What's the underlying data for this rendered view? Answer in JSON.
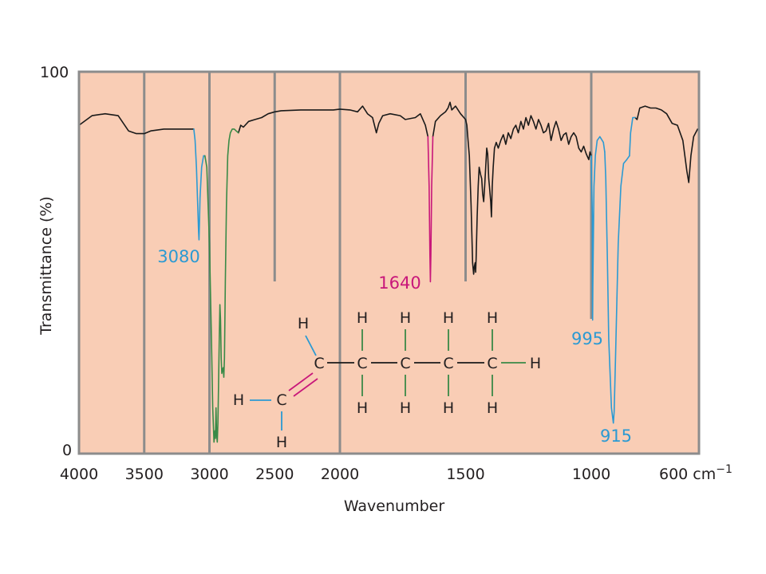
{
  "colors": {
    "plot_background": "#f9cdb5",
    "frame": "#8c8c8c",
    "gridline": "#8c8c8c",
    "spectrum": "#1a1a1a",
    "text": "#231f20",
    "blue": "#2b9ad3",
    "green": "#3a8a47",
    "magenta": "#c8177a"
  },
  "chart_data": {
    "type": "line",
    "title": "",
    "xlabel": "Wavenumber",
    "ylabel": "Transmittance (%)",
    "xlim": [
      4000,
      600
    ],
    "ylim": [
      0,
      100
    ],
    "x_scale": "piecewise-linear (expanded 2x below 2000 cm-1)",
    "grid": true,
    "x_ticks": [
      {
        "value": 4000,
        "label": "4000"
      },
      {
        "value": 3500,
        "label": "3500"
      },
      {
        "value": 3000,
        "label": "3000"
      },
      {
        "value": 2500,
        "label": "2500"
      },
      {
        "value": 2000,
        "label": "2000"
      },
      {
        "value": 1500,
        "label": "1500"
      },
      {
        "value": 1000,
        "label": "1000"
      },
      {
        "value": 600,
        "label": "600 cm",
        "superscript": "−1"
      }
    ],
    "y_ticks": [
      {
        "value": 100,
        "label": "100"
      },
      {
        "value": 0,
        "label": "0"
      }
    ],
    "series": [
      {
        "color": "black",
        "segments": [
          [
            [
              4000,
              86
            ],
            [
              3900,
              88.5
            ],
            [
              3800,
              89
            ],
            [
              3700,
              88.5
            ],
            [
              3620,
              84.5
            ],
            [
              3560,
              83.8
            ],
            [
              3500,
              83.8
            ],
            [
              3450,
              84.5
            ],
            [
              3350,
              85
            ],
            [
              3240,
              85
            ],
            [
              3120,
              85
            ]
          ],
          [
            [
              2778,
              84
            ],
            [
              2760,
              86
            ],
            [
              2740,
              85.5
            ],
            [
              2700,
              87
            ],
            [
              2650,
              87.5
            ],
            [
              2600,
              88
            ],
            [
              2550,
              89
            ],
            [
              2500,
              89.5
            ],
            [
              2450,
              89.8
            ],
            [
              2300,
              90
            ],
            [
              2200,
              90
            ],
            [
              2100,
              90
            ],
            [
              2050,
              90
            ],
            [
              2000,
              90.2
            ],
            [
              1960,
              90
            ],
            [
              1930,
              89.5
            ],
            [
              1910,
              91
            ],
            [
              1890,
              89
            ],
            [
              1870,
              88
            ],
            [
              1855,
              84
            ],
            [
              1845,
              86.5
            ],
            [
              1830,
              88.5
            ],
            [
              1800,
              89
            ],
            [
              1760,
              88.5
            ],
            [
              1740,
              87.5
            ],
            [
              1700,
              88
            ],
            [
              1680,
              89
            ],
            [
              1660,
              86
            ],
            [
              1650,
              83
            ]
          ],
          [
            [
              1630,
              83
            ],
            [
              1620,
              87
            ],
            [
              1600,
              88.5
            ],
            [
              1580,
              89.5
            ],
            [
              1570,
              90.5
            ],
            [
              1562,
              92
            ],
            [
              1555,
              90
            ],
            [
              1540,
              91
            ],
            [
              1520,
              89
            ],
            [
              1500,
              87.5
            ],
            [
              1495,
              86
            ],
            [
              1490,
              82
            ],
            [
              1485,
              78
            ],
            [
              1478,
              65
            ],
            [
              1472,
              50
            ],
            [
              1468,
              47
            ],
            [
              1465,
              49
            ],
            [
              1462,
              50
            ],
            [
              1460,
              47.5
            ],
            [
              1458,
              51
            ],
            [
              1454,
              62
            ],
            [
              1450,
              70
            ],
            [
              1446,
              75
            ],
            [
              1440,
              73
            ],
            [
              1436,
              72
            ],
            [
              1432,
              68
            ],
            [
              1428,
              66
            ],
            [
              1424,
              70
            ],
            [
              1420,
              75
            ],
            [
              1416,
              80
            ],
            [
              1412,
              78.5
            ],
            [
              1408,
              72
            ],
            [
              1405,
              70
            ],
            [
              1400,
              66
            ],
            [
              1397,
              62
            ],
            [
              1394,
              70
            ],
            [
              1390,
              75
            ],
            [
              1385,
              80
            ],
            [
              1378,
              81.5
            ],
            [
              1370,
              80
            ],
            [
              1360,
              82
            ],
            [
              1350,
              83.5
            ],
            [
              1340,
              81
            ],
            [
              1330,
              84
            ],
            [
              1320,
              82.5
            ],
            [
              1310,
              85
            ],
            [
              1300,
              86
            ],
            [
              1290,
              84
            ],
            [
              1280,
              87
            ],
            [
              1270,
              85
            ],
            [
              1260,
              88
            ],
            [
              1250,
              86
            ],
            [
              1240,
              88.5
            ],
            [
              1230,
              87
            ],
            [
              1220,
              85
            ],
            [
              1210,
              87.5
            ],
            [
              1200,
              86
            ],
            [
              1190,
              84
            ],
            [
              1180,
              84.5
            ],
            [
              1170,
              86.5
            ],
            [
              1160,
              82
            ],
            [
              1150,
              85
            ],
            [
              1140,
              87
            ],
            [
              1130,
              85
            ],
            [
              1120,
              82
            ],
            [
              1110,
              83.5
            ],
            [
              1100,
              84
            ],
            [
              1090,
              81
            ],
            [
              1080,
              83
            ],
            [
              1070,
              84
            ],
            [
              1060,
              83
            ],
            [
              1050,
              80
            ],
            [
              1040,
              79
            ],
            [
              1030,
              80.5
            ],
            [
              1020,
              78.5
            ],
            [
              1010,
              77
            ],
            [
              1005,
              79
            ],
            [
              1000,
              78
            ]
          ],
          [
            [
              837,
              88
            ],
            [
              830,
              87.5
            ],
            [
              820,
              90.5
            ],
            [
              800,
              91
            ],
            [
              780,
              90.5
            ],
            [
              760,
              90.5
            ],
            [
              740,
              90
            ],
            [
              720,
              89
            ],
            [
              700,
              86.5
            ],
            [
              680,
              86
            ],
            [
              660,
              82
            ],
            [
              645,
              74
            ],
            [
              638,
              71
            ],
            [
              630,
              78
            ],
            [
              620,
              83
            ],
            [
              605,
              85
            ],
            [
              600,
              85
            ]
          ]
        ]
      },
      {
        "color": "blue",
        "segments": [
          [
            [
              3120,
              85
            ],
            [
              3110,
              82
            ],
            [
              3100,
              75
            ],
            [
              3090,
              65
            ],
            [
              3083,
              58
            ],
            [
              3080,
              56
            ],
            [
              3077,
              60
            ],
            [
              3072,
              67
            ],
            [
              3060,
              75
            ],
            [
              3045,
              78
            ],
            [
              3035,
              78
            ]
          ],
          [
            [
              1000,
              78
            ],
            [
              996,
              62
            ],
            [
              995,
              35
            ],
            [
              994,
              44
            ],
            [
              990,
              70
            ],
            [
              985,
              78
            ],
            [
              978,
              82
            ],
            [
              968,
              83
            ],
            [
              955,
              81.5
            ],
            [
              950,
              79
            ]
          ],
          [
            [
              858,
              78
            ],
            [
              854,
              84
            ],
            [
              846,
              88
            ],
            [
              837,
              88
            ]
          ]
        ]
      },
      {
        "color": "green",
        "segments": [
          [
            [
              3035,
              78
            ],
            [
              3020,
              75
            ],
            [
              3000,
              55
            ],
            [
              2985,
              30
            ],
            [
              2975,
              12
            ],
            [
              2965,
              3
            ],
            [
              2958,
              6
            ],
            [
              2954,
              4
            ],
            [
              2950,
              12
            ],
            [
              2945,
              5
            ],
            [
              2940,
              3
            ],
            [
              2935,
              8
            ],
            [
              2930,
              18
            ],
            [
              2925,
              30
            ],
            [
              2920,
              39
            ],
            [
              2915,
              35
            ],
            [
              2910,
              25
            ],
            [
              2905,
              21
            ],
            [
              2900,
              22
            ],
            [
              2895,
              22.5
            ],
            [
              2890,
              20
            ],
            [
              2885,
              25
            ],
            [
              2878,
              45
            ],
            [
              2870,
              65
            ],
            [
              2860,
              78
            ],
            [
              2850,
              82
            ],
            [
              2840,
              84
            ],
            [
              2825,
              85
            ],
            [
              2810,
              85
            ],
            [
              2795,
              84.5
            ],
            [
              2778,
              84
            ]
          ]
        ]
      },
      {
        "color": "magenta",
        "segments": [
          [
            [
              1650,
              83
            ],
            [
              1645,
              70
            ],
            [
              1642,
              52
            ],
            [
              1640,
              45
            ],
            [
              1638,
              52
            ],
            [
              1635,
              70
            ],
            [
              1630,
              83
            ]
          ]
        ]
      },
      {
        "color": "blue",
        "segments": [
          [
            [
              950,
              79
            ],
            [
              946,
              72
            ],
            [
              940,
              50
            ],
            [
              935,
              30
            ],
            [
              925,
              12
            ],
            [
              918,
              8
            ],
            [
              915,
              11
            ],
            [
              910,
              25
            ],
            [
              900,
              55
            ],
            [
              890,
              70
            ],
            [
              880,
              76
            ],
            [
              868,
              77
            ],
            [
              858,
              78
            ]
          ]
        ]
      }
    ],
    "annotations": [
      {
        "label": "3080",
        "color": "blue"
      },
      {
        "label": "1640",
        "color": "magenta"
      },
      {
        "label": "995",
        "color": "blue"
      },
      {
        "label": "915",
        "color": "blue"
      }
    ],
    "structure": {
      "atom_labels": [
        "H",
        "H",
        "H",
        "H",
        "H",
        "C",
        "C",
        "C",
        "C",
        "C",
        "C",
        "H",
        "H",
        "H",
        "H",
        "H",
        "H"
      ]
    }
  }
}
